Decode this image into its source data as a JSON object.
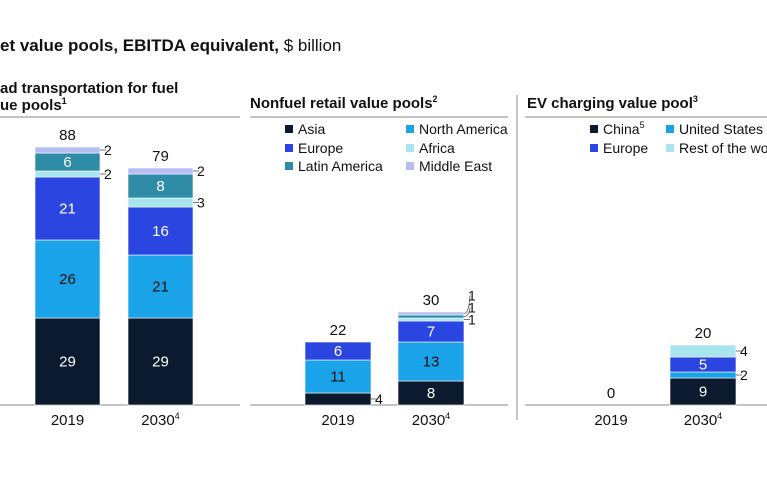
{
  "title": {
    "bold": "et value pools, EBITDA equivalent,",
    "unit": " $ billion"
  },
  "colors": {
    "asia": "#0b1a2e",
    "north_america": "#1aa3e8",
    "europe": "#2b45e0",
    "africa": "#a9e5ef",
    "latin_america": "#2f8ca7",
    "middle_east": "#b5bdf2"
  },
  "chart_data": [
    {
      "type": "bar",
      "stacked": true,
      "title_line1": "ad transportation for fuel",
      "title_line2": "ue pools",
      "title_sup": "1",
      "categories": [
        "2019",
        "2030"
      ],
      "category_sups": [
        "",
        "4"
      ],
      "totals": [
        "88",
        "79"
      ],
      "ylim": [
        0,
        88
      ],
      "series": [
        {
          "key": "asia",
          "values": [
            29,
            29
          ],
          "labels": [
            "29",
            "29"
          ]
        },
        {
          "key": "north_america",
          "values": [
            26,
            21
          ],
          "labels": [
            "26",
            "21"
          ]
        },
        {
          "key": "europe",
          "values": [
            21,
            16
          ],
          "labels": [
            "21",
            "16"
          ]
        },
        {
          "key": "africa",
          "values": [
            2,
            3
          ],
          "labels": [
            "2",
            "3"
          ]
        },
        {
          "key": "latin_america",
          "values": [
            6,
            8
          ],
          "labels": [
            "6",
            "8"
          ]
        },
        {
          "key": "middle_east",
          "values": [
            2,
            2
          ],
          "labels": [
            "2",
            "2"
          ]
        }
      ]
    },
    {
      "type": "bar",
      "stacked": true,
      "title_line1": "Nonfuel retail value pools",
      "title_sup": "2",
      "legend": [
        {
          "key": "asia",
          "label": "Asia"
        },
        {
          "key": "north_america",
          "label": "North America"
        },
        {
          "key": "europe",
          "label": "Europe"
        },
        {
          "key": "africa",
          "label": "Africa"
        },
        {
          "key": "latin_america",
          "label": "Latin America"
        },
        {
          "key": "middle_east",
          "label": "Middle East"
        }
      ],
      "categories": [
        "2019",
        "2030"
      ],
      "category_sups": [
        "",
        "4"
      ],
      "totals": [
        "22",
        "30"
      ],
      "ylim": [
        0,
        88
      ],
      "series": [
        {
          "key": "asia",
          "values": [
            4,
            8
          ],
          "labels": [
            "4",
            "8"
          ]
        },
        {
          "key": "north_america",
          "values": [
            11,
            13
          ],
          "labels": [
            "11",
            "13"
          ]
        },
        {
          "key": "europe",
          "values": [
            6,
            7
          ],
          "labels": [
            "6",
            "7"
          ]
        },
        {
          "key": "africa",
          "values": [
            0,
            1
          ],
          "labels": [
            "",
            "1"
          ]
        },
        {
          "key": "latin_america",
          "values": [
            0,
            1
          ],
          "labels": [
            "",
            "1"
          ]
        },
        {
          "key": "middle_east",
          "values": [
            0,
            1
          ],
          "labels": [
            "",
            "1"
          ]
        }
      ]
    },
    {
      "type": "bar",
      "stacked": true,
      "title_line1": "EV charging value pool",
      "title_sup": "3",
      "legend": [
        {
          "key": "asia",
          "label": "China",
          "sup": "5"
        },
        {
          "key": "north_america",
          "label": "United States"
        },
        {
          "key": "europe",
          "label": "Europe"
        },
        {
          "key": "africa",
          "label": "Rest of the wo"
        }
      ],
      "categories": [
        "2019",
        "2030"
      ],
      "category_sups": [
        "",
        "4"
      ],
      "totals": [
        "0",
        "20"
      ],
      "ylim": [
        0,
        88
      ],
      "series": [
        {
          "key": "asia",
          "values": [
            0,
            9
          ],
          "labels": [
            "",
            "9"
          ]
        },
        {
          "key": "north_america",
          "values": [
            0,
            2
          ],
          "labels": [
            "",
            "2"
          ]
        },
        {
          "key": "europe",
          "values": [
            0,
            5
          ],
          "labels": [
            "",
            "5"
          ]
        },
        {
          "key": "africa",
          "values": [
            0,
            4
          ],
          "labels": [
            "",
            "4"
          ]
        }
      ]
    }
  ]
}
